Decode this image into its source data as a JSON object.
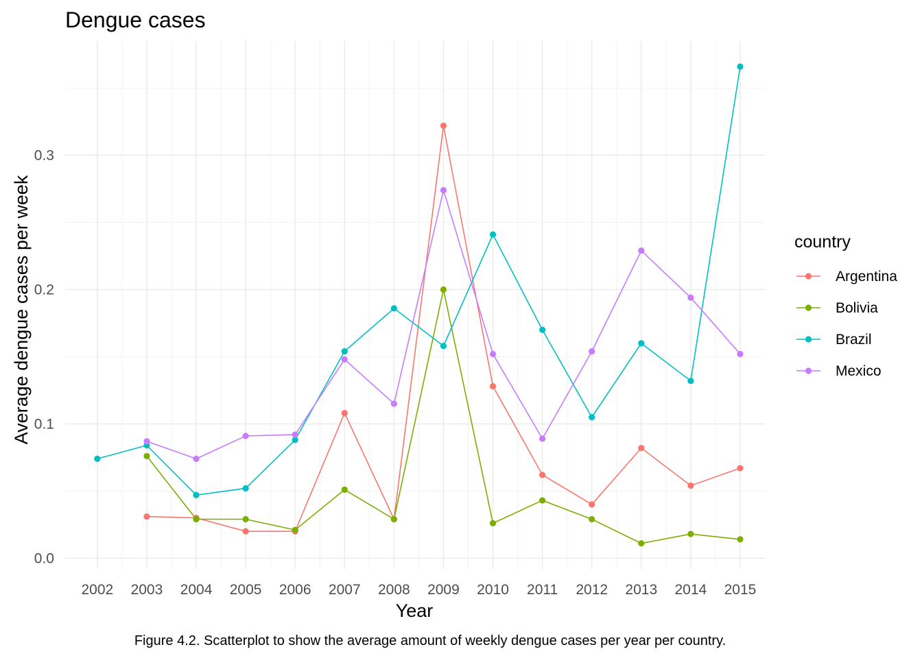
{
  "chart_data": {
    "type": "line",
    "title": "Dengue cases",
    "xlabel": "Year",
    "ylabel": "Average dengue cases per week",
    "caption": "Figure 4.2. Scatterplot to show the average amount of weekly dengue cases per year per country.",
    "x": [
      2002,
      2003,
      2004,
      2005,
      2006,
      2007,
      2008,
      2009,
      2010,
      2011,
      2012,
      2013,
      2014,
      2015
    ],
    "x_tick_labels": [
      "2002",
      "2003",
      "2004",
      "2005",
      "2006",
      "2007",
      "2008",
      "2009",
      "2010",
      "2011",
      "2012",
      "2013",
      "2014",
      "2015"
    ],
    "y_ticks": [
      0.0,
      0.1,
      0.2,
      0.3
    ],
    "y_tick_labels": [
      "0.0",
      "0.1",
      "0.2",
      "0.3"
    ],
    "xlim": [
      2001.35,
      2015.5
    ],
    "ylim": [
      -0.008,
      0.385
    ],
    "grid": true,
    "legend": {
      "title": "country",
      "position": "right"
    },
    "series": [
      {
        "name": "Argentina",
        "color": "#F8766D",
        "values": [
          null,
          0.031,
          0.03,
          0.02,
          0.02,
          0.108,
          0.029,
          0.322,
          0.128,
          0.062,
          0.04,
          0.082,
          0.054,
          0.067
        ]
      },
      {
        "name": "Bolivia",
        "color": "#7CAE00",
        "values": [
          null,
          0.076,
          0.029,
          0.029,
          0.021,
          0.051,
          0.029,
          0.2,
          0.026,
          0.043,
          0.029,
          0.011,
          0.018,
          0.014
        ]
      },
      {
        "name": "Brazil",
        "color": "#00BFC4",
        "values": [
          0.074,
          0.084,
          0.047,
          0.052,
          0.088,
          0.154,
          0.186,
          0.158,
          0.241,
          0.17,
          0.105,
          0.16,
          0.132,
          0.366
        ]
      },
      {
        "name": "Mexico",
        "color": "#C77CFF",
        "values": [
          null,
          0.087,
          0.074,
          0.091,
          0.092,
          0.148,
          0.115,
          0.274,
          0.152,
          0.089,
          0.154,
          0.229,
          0.194,
          0.152
        ]
      }
    ]
  }
}
